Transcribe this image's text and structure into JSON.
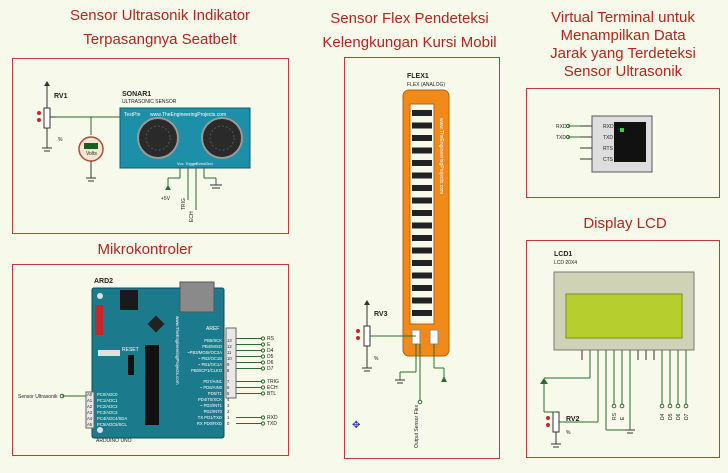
{
  "headings": {
    "sensor_ultrasonik": [
      "Sensor Ultrasonik Indikator",
      "Terpasangnya Seatbelt"
    ],
    "sensor_flex": [
      "Sensor Flex Pendeteksi",
      "Kelengkungan Kursi Mobil"
    ],
    "virtual_terminal": [
      "Virtual Terminal untuk",
      "Menampilkan Data",
      "Jarak yang Terdeteksi",
      "Sensor Ultrasonik"
    ],
    "mikrokontroler": "Mikrokontroler",
    "display_lcd": "Display LCD"
  },
  "sonar": {
    "ref": "SONAR1",
    "name": "ULTRASONIC SENSOR",
    "brand": "www.TheEngineeringProjects.com",
    "testpin": "TestPin",
    "pot_ref": "RV1",
    "pot_unit": "%",
    "meter_value": "Volts",
    "power_label": "+5V",
    "trig_label": "TRIG",
    "echo_label": "ECH",
    "pins": [
      "Vcc",
      "Trigger",
      "Echo",
      "Gnd"
    ]
  },
  "flex": {
    "ref": "FLEX1",
    "name": "FLEX (ANALOG)",
    "brand": "www.TheEngineeringProjects.com",
    "pot_ref": "RV3",
    "pot_unit": "%",
    "output_label": "Output Sensor Flex"
  },
  "terminal": {
    "pins": [
      "RXD",
      "TXD",
      "RTS",
      "CTS"
    ],
    "net_labels": [
      "RXD",
      "TXD"
    ]
  },
  "arduino": {
    "ref": "ARD2",
    "name": "ARDUINO UNO",
    "brand": "www.TheEngineeringProjects.com",
    "reset_label": "RESET",
    "aref_label": "AREF",
    "input_label": "Sensor Ultrasonik",
    "analog_pins": [
      "A0",
      "A1",
      "A2",
      "A3",
      "A4",
      "A5"
    ],
    "analog_names": [
      "PC0/ADC0",
      "PC1/ADC1",
      "PC2/ADC2",
      "PC3/ADC3",
      "PC4/ADC4/SDA",
      "PC5/ADC5/SCL"
    ],
    "digital_names": [
      "PB5/SCK",
      "PB4/MISO",
      "~PB3/MOSI/OC2A",
      "~ PB2/OC1B",
      "~ PB1/OC1A",
      "PB0/ICP1/CLKO",
      "PD7/AIN1",
      "~ PD6/AIN0",
      "PD5/T1",
      "PD4/T0/XCK",
      "~ PD3/INT1",
      "PD2/INT0",
      "TX PD1/TXD",
      "RX PD0/RXD"
    ],
    "digital_pins": [
      "13",
      "12",
      "11",
      "10",
      "9",
      "8",
      "7",
      "6",
      "5",
      "4",
      "3",
      "2",
      "1",
      "0"
    ],
    "output_nets": [
      "RS",
      "E",
      "D4",
      "D5",
      "D6",
      "D7",
      "TRIG",
      "ECH",
      "BTL",
      "RXD",
      "TXD"
    ]
  },
  "lcd": {
    "ref": "LCD1",
    "name": "LCD 20X4",
    "pot_ref": "RV2",
    "pot_unit": "%",
    "nets": [
      "RS",
      "E",
      "D4",
      "D5",
      "D6",
      "D7"
    ]
  },
  "colors": {
    "heading": "#b3261e",
    "frame": "#c0393b",
    "board": "#1b7a8c",
    "sensor": "#1e8fa8",
    "flex": "#f28a1a",
    "lcd_screen": "#b6cf2f",
    "wire": "#2e6b2e",
    "background": "#f7f9ea"
  }
}
